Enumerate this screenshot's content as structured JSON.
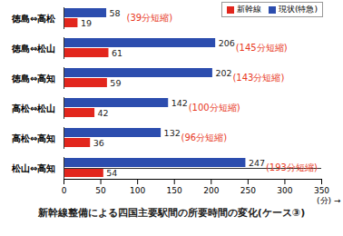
{
  "chart_data": {
    "type": "bar",
    "orientation": "horizontal",
    "title": "新幹線整備による四国主要駅間の所要時間の変化(ケース③)",
    "xlabel": "(分)",
    "categories": [
      "徳島⇔高松",
      "徳島⇔松山",
      "徳島⇔高知",
      "高松⇔松山",
      "高松⇔高知",
      "松山⇔高知"
    ],
    "series": [
      {
        "name": "新幹線",
        "color": "#e2261d",
        "values": [
          19,
          61,
          59,
          42,
          36,
          54
        ]
      },
      {
        "name": "現状(特急)",
        "color": "#2c4dae",
        "values": [
          58,
          206,
          202,
          142,
          132,
          247
        ]
      }
    ],
    "annotations": [
      "(39分短縮)",
      "(145分短縮)",
      "(143分短縮)",
      "(100分短縮)",
      "(96分短縮)",
      "(193分短縮)"
    ],
    "xlim": [
      0,
      350
    ],
    "xticks": [
      0,
      50,
      100,
      150,
      200,
      250,
      300,
      350
    ],
    "data_labels": true,
    "legend": "top-right",
    "grid": false
  }
}
